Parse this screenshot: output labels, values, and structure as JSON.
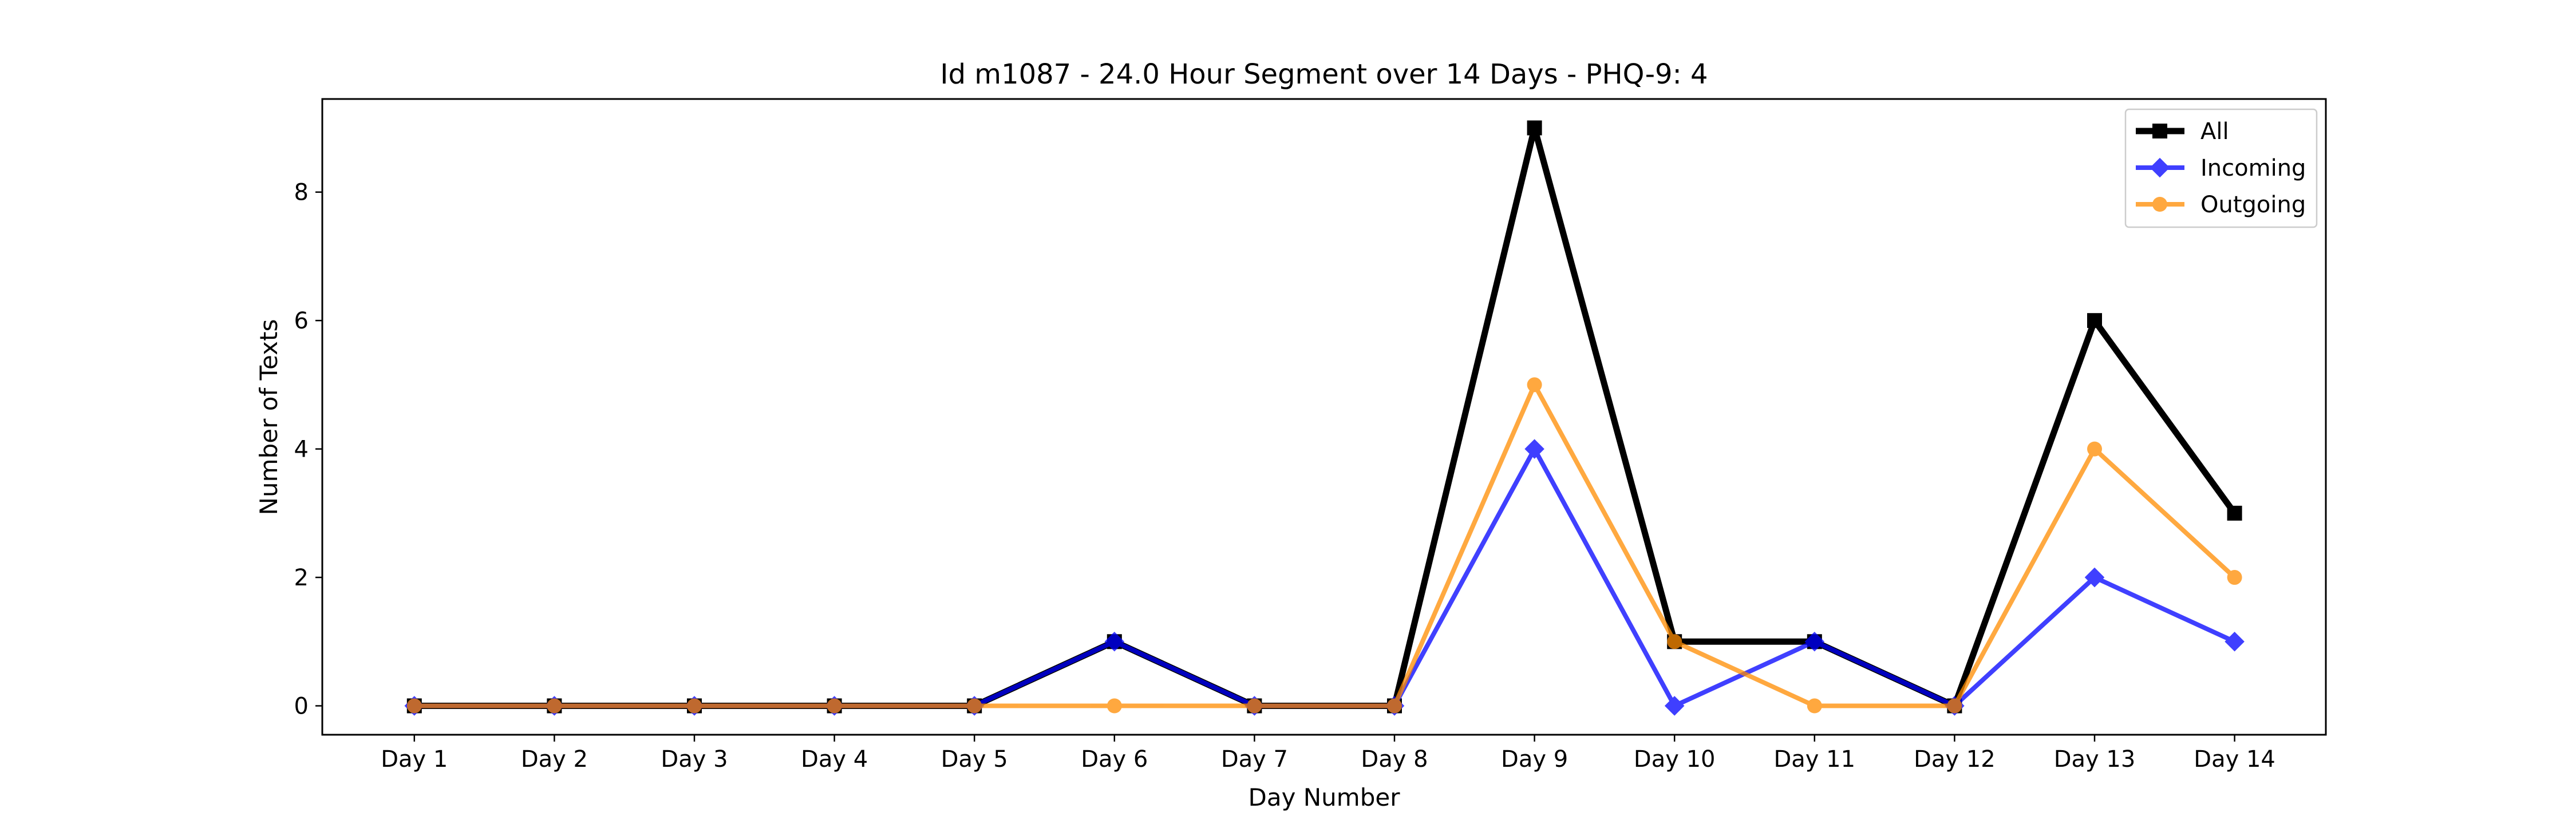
{
  "chart_data": {
    "type": "line",
    "title": "Id m1087 - 24.0 Hour Segment over 14 Days - PHQ-9: 4",
    "xlabel": "Day Number",
    "ylabel": "Number of Texts",
    "categories": [
      "Day 1",
      "Day 2",
      "Day 3",
      "Day 4",
      "Day 5",
      "Day 6",
      "Day 7",
      "Day 8",
      "Day 9",
      "Day 10",
      "Day 11",
      "Day 12",
      "Day 13",
      "Day 14"
    ],
    "yticks": [
      0,
      2,
      4,
      6,
      8
    ],
    "ylim": [
      -0.45,
      9.45
    ],
    "grid": false,
    "legend_position": "top-right",
    "series": [
      {
        "name": "All",
        "values": [
          0,
          0,
          0,
          0,
          0,
          1,
          0,
          0,
          9,
          1,
          1,
          0,
          6,
          3
        ],
        "color": "#000000",
        "marker": "square"
      },
      {
        "name": "Incoming",
        "values": [
          0,
          0,
          0,
          0,
          0,
          1,
          0,
          0,
          4,
          0,
          1,
          0,
          2,
          1
        ],
        "color": "#0000ff",
        "marker": "diamond"
      },
      {
        "name": "Outgoing",
        "values": [
          0,
          0,
          0,
          0,
          0,
          0,
          0,
          0,
          5,
          1,
          0,
          0,
          4,
          2
        ],
        "color": "#ff8c00",
        "marker": "circle"
      }
    ]
  }
}
